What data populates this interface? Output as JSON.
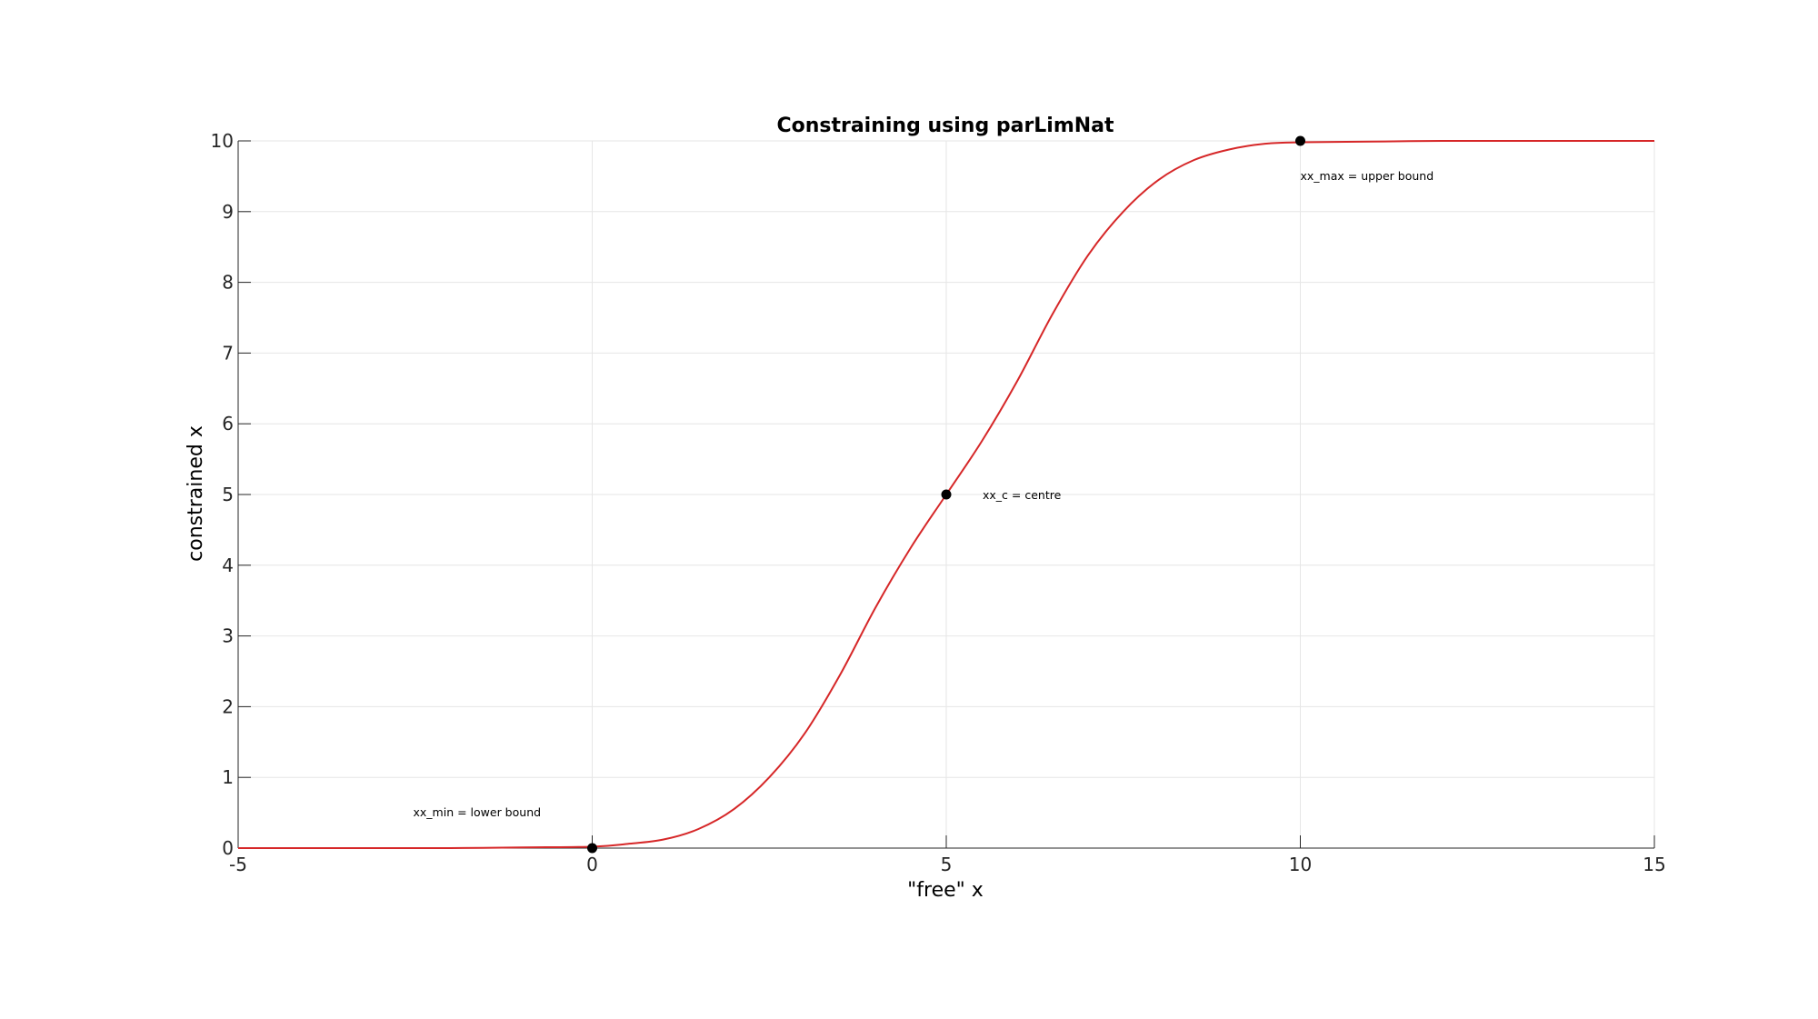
{
  "chart_data": {
    "type": "line",
    "title": "Constraining using parLimNat",
    "xlabel": "\"free\" x",
    "ylabel": "constrained x",
    "xlim": [
      -5,
      15
    ],
    "ylim": [
      0,
      10
    ],
    "x_ticks": [
      -5,
      0,
      5,
      10,
      15
    ],
    "y_ticks": [
      0,
      1,
      2,
      3,
      4,
      5,
      6,
      7,
      8,
      9,
      10
    ],
    "x_tick_labels": [
      "-5",
      "0",
      "5",
      "10",
      "15"
    ],
    "y_tick_labels": [
      "0",
      "1",
      "2",
      "3",
      "4",
      "5",
      "6",
      "7",
      "8",
      "9",
      "10"
    ],
    "grid": true,
    "series": [
      {
        "color": "#d62728",
        "x": [
          -5,
          -4,
          -3,
          -2,
          -1,
          0,
          0.5,
          1,
          1.5,
          2,
          2.5,
          3,
          3.5,
          4,
          4.5,
          5,
          5.5,
          6,
          6.5,
          7,
          7.5,
          8,
          8.5,
          9,
          9.5,
          10,
          11,
          12,
          13,
          14,
          15
        ],
        "y": [
          0.0,
          0.0,
          0.0,
          0.0,
          0.01,
          0.02,
          0.06,
          0.12,
          0.27,
          0.55,
          1.0,
          1.62,
          2.45,
          3.4,
          4.25,
          5.0,
          5.75,
          6.6,
          7.55,
          8.38,
          9.0,
          9.45,
          9.73,
          9.88,
          9.96,
          9.98,
          9.99,
          10.0,
          10.0,
          10.0,
          10.0
        ]
      }
    ],
    "markers": [
      {
        "x": 0,
        "y": 0,
        "label": "xx_min = lower bound"
      },
      {
        "x": 5,
        "y": 5,
        "label": "xx_c = centre"
      },
      {
        "x": 10,
        "y": 10,
        "label": "xx_max = upper bound"
      }
    ]
  }
}
